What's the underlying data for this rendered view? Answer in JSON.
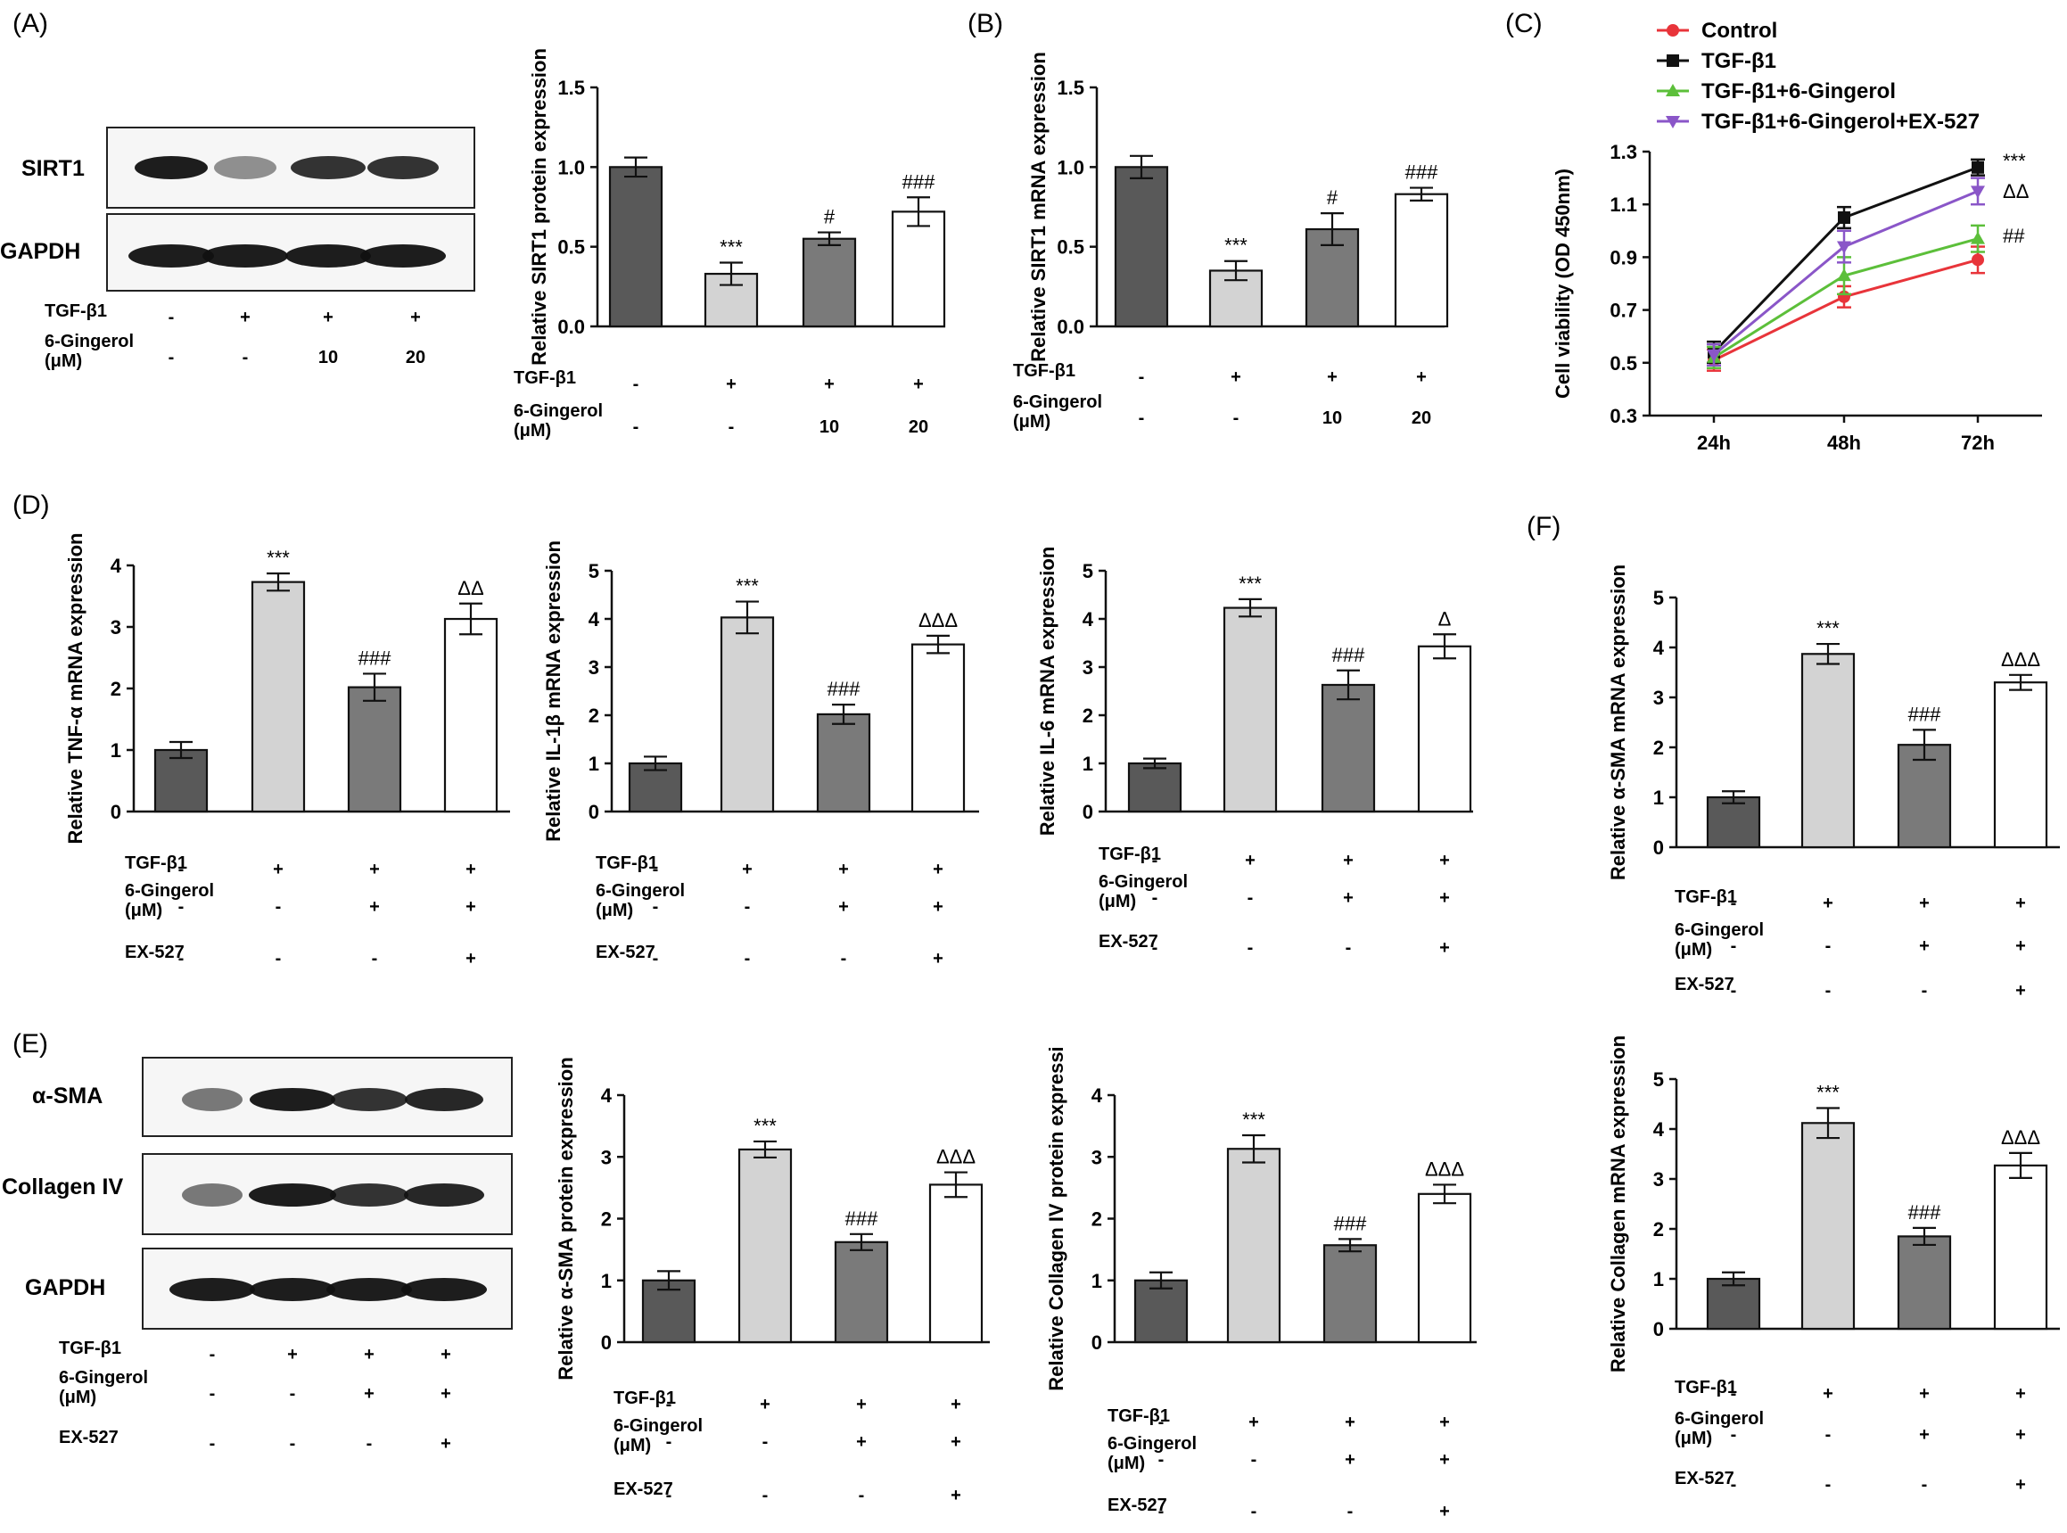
{
  "panels": {
    "A": {
      "label": "(A)"
    },
    "B": {
      "label": "(B)"
    },
    "C": {
      "label": "(C)"
    },
    "D": {
      "label": "(D)"
    },
    "E": {
      "label": "(E)"
    },
    "F": {
      "label": "(F)"
    }
  },
  "blots": {
    "A": {
      "bands": [
        "SIRT1",
        "GAPDH"
      ],
      "treatments": [
        {
          "name": "TGF-β1",
          "values": [
            "-",
            "+",
            "+",
            "+"
          ]
        },
        {
          "name": "6-Gingerol\n(μM)",
          "values": [
            "-",
            "-",
            "10",
            "20"
          ]
        }
      ]
    },
    "E": {
      "bands": [
        "α-SMA",
        "Collagen IV",
        "GAPDH"
      ],
      "treatments": [
        {
          "name": "TGF-β1",
          "values": [
            "-",
            "+",
            "+",
            "+"
          ]
        },
        {
          "name": "6-Gingerol\n(μM)",
          "values": [
            "-",
            "-",
            "+",
            "+"
          ]
        },
        {
          "name": "EX-527",
          "values": [
            "-",
            "-",
            "-",
            "+"
          ]
        }
      ]
    }
  },
  "colors": {
    "bar_fills": [
      "#595959",
      "#d3d3d3",
      "#7a7a7a",
      "#ffffff"
    ],
    "control": "#e8343a",
    "tgf": "#111111",
    "gingerol": "#5cbf3a",
    "ex527": "#8a56c8"
  },
  "chart_data": [
    {
      "id": "A-bar",
      "type": "bar",
      "ylabel": "Relative SIRT1 protein expression",
      "ylim": [
        0,
        1.5
      ],
      "yticks": [
        "0.0",
        "0.5",
        "1.0",
        "1.5"
      ],
      "values": [
        1.0,
        0.33,
        0.55,
        0.72
      ],
      "errors": [
        0.06,
        0.07,
        0.04,
        0.09
      ],
      "sig": [
        "",
        "***",
        "#",
        "###"
      ],
      "treatments": [
        {
          "name": "TGF-β1",
          "values": [
            "-",
            "+",
            "+",
            "+"
          ]
        },
        {
          "name": "6-Gingerol\n(μM)",
          "values": [
            "-",
            "-",
            "10",
            "20"
          ]
        }
      ]
    },
    {
      "id": "B-bar",
      "type": "bar",
      "ylabel": "Relative SIRT1 mRNA expression",
      "ylim": [
        0,
        1.5
      ],
      "yticks": [
        "0.0",
        "0.5",
        "1.0",
        "1.5"
      ],
      "values": [
        1.0,
        0.35,
        0.61,
        0.83
      ],
      "errors": [
        0.07,
        0.06,
        0.1,
        0.04
      ],
      "sig": [
        "",
        "***",
        "#",
        "###"
      ],
      "treatments": [
        {
          "name": "TGF-β1",
          "values": [
            "-",
            "+",
            "+",
            "+"
          ]
        },
        {
          "name": "6-Gingerol\n(μM)",
          "values": [
            "-",
            "-",
            "10",
            "20"
          ]
        }
      ]
    },
    {
      "id": "C-line",
      "type": "line",
      "ylabel": "Cell viability (OD 450nm)",
      "ylim": [
        0.3,
        1.3
      ],
      "yticks": [
        "0.3",
        "0.5",
        "0.7",
        "0.9",
        "1.1",
        "1.3"
      ],
      "categories": [
        "24h",
        "48h",
        "72h"
      ],
      "series": [
        {
          "name": "Control",
          "values": [
            0.51,
            0.75,
            0.89
          ],
          "errors": [
            0.04,
            0.04,
            0.05
          ]
        },
        {
          "name": "TGF-β1",
          "values": [
            0.54,
            1.05,
            1.24
          ],
          "errors": [
            0.04,
            0.04,
            0.03
          ]
        },
        {
          "name": "TGF-β1+6-Gingerol",
          "values": [
            0.52,
            0.83,
            0.97
          ],
          "errors": [
            0.04,
            0.07,
            0.05
          ]
        },
        {
          "name": "TGF-β1+6-Gingerol+EX-527",
          "values": [
            0.53,
            0.94,
            1.15
          ],
          "errors": [
            0.04,
            0.06,
            0.05
          ]
        }
      ],
      "annotations": [
        "***",
        "ΔΔ",
        "##"
      ]
    },
    {
      "id": "D1",
      "type": "bar",
      "ylabel": "Relative TNF-α mRNA expression",
      "ylim": [
        0,
        4
      ],
      "yticks": [
        "0",
        "1",
        "2",
        "3",
        "4"
      ],
      "values": [
        1.0,
        3.73,
        2.02,
        3.13
      ],
      "errors": [
        0.13,
        0.14,
        0.22,
        0.25
      ],
      "sig": [
        "",
        "***",
        "###",
        "ΔΔ"
      ],
      "treatments": [
        {
          "name": "TGF-β1",
          "values": [
            "-",
            "+",
            "+",
            "+"
          ]
        },
        {
          "name": "6-Gingerol\n(μM)",
          "values": [
            "-",
            "-",
            "+",
            "+"
          ]
        },
        {
          "name": "EX-527",
          "values": [
            "-",
            "-",
            "-",
            "+"
          ]
        }
      ]
    },
    {
      "id": "D2",
      "type": "bar",
      "ylabel": "Relative IL-1β mRNA expression",
      "ylim": [
        0,
        5
      ],
      "yticks": [
        "0",
        "1",
        "2",
        "3",
        "4",
        "5"
      ],
      "values": [
        1.0,
        4.03,
        2.02,
        3.47
      ],
      "errors": [
        0.14,
        0.33,
        0.2,
        0.18
      ],
      "sig": [
        "",
        "***",
        "###",
        "ΔΔΔ"
      ],
      "treatments": [
        {
          "name": "TGF-β1",
          "values": [
            "-",
            "+",
            "+",
            "+"
          ]
        },
        {
          "name": "6-Gingerol\n(μM)",
          "values": [
            "-",
            "-",
            "+",
            "+"
          ]
        },
        {
          "name": "EX-527",
          "values": [
            "-",
            "-",
            "-",
            "+"
          ]
        }
      ]
    },
    {
      "id": "D3",
      "type": "bar",
      "ylabel": "Relative IL-6 mRNA expression",
      "ylim": [
        0,
        5
      ],
      "yticks": [
        "0",
        "1",
        "2",
        "3",
        "4",
        "5"
      ],
      "values": [
        1.0,
        4.23,
        2.63,
        3.43
      ],
      "errors": [
        0.1,
        0.18,
        0.3,
        0.25
      ],
      "sig": [
        "",
        "***",
        "###",
        "Δ"
      ],
      "treatments": [
        {
          "name": "TGF-β1",
          "values": [
            "-",
            "+",
            "+",
            "+"
          ]
        },
        {
          "name": "6-Gingerol\n(μM)",
          "values": [
            "-",
            "-",
            "+",
            "+"
          ]
        },
        {
          "name": "EX-527",
          "values": [
            "-",
            "-",
            "-",
            "+"
          ]
        }
      ]
    },
    {
      "id": "F1",
      "type": "bar",
      "ylabel": "Relative α-SMA mRNA expression",
      "ylim": [
        0,
        5
      ],
      "yticks": [
        "0",
        "1",
        "2",
        "3",
        "4",
        "5"
      ],
      "values": [
        1.0,
        3.87,
        2.05,
        3.3
      ],
      "errors": [
        0.12,
        0.2,
        0.3,
        0.15
      ],
      "sig": [
        "",
        "***",
        "###",
        "ΔΔΔ"
      ],
      "treatments": [
        {
          "name": "TGF-β1",
          "values": [
            "-",
            "+",
            "+",
            "+"
          ]
        },
        {
          "name": "6-Gingerol\n(μM)",
          "values": [
            "-",
            "-",
            "+",
            "+"
          ]
        },
        {
          "name": "EX-527",
          "values": [
            "-",
            "-",
            "-",
            "+"
          ]
        }
      ]
    },
    {
      "id": "E1",
      "type": "bar",
      "ylabel": "Relative α-SMA protein expression",
      "ylim": [
        0,
        4
      ],
      "yticks": [
        "0",
        "1",
        "2",
        "3",
        "4"
      ],
      "values": [
        1.0,
        3.12,
        1.62,
        2.55
      ],
      "errors": [
        0.15,
        0.13,
        0.13,
        0.2
      ],
      "sig": [
        "",
        "***",
        "###",
        "ΔΔΔ"
      ],
      "treatments": [
        {
          "name": "TGF-β1",
          "values": [
            "-",
            "+",
            "+",
            "+"
          ]
        },
        {
          "name": "6-Gingerol\n(μM)",
          "values": [
            "-",
            "-",
            "+",
            "+"
          ]
        },
        {
          "name": "EX-527",
          "values": [
            "-",
            "-",
            "-",
            "+"
          ]
        }
      ]
    },
    {
      "id": "E2",
      "type": "bar",
      "ylabel": "Relative Collagen IV protein expressi",
      "ylim": [
        0,
        4
      ],
      "yticks": [
        "0",
        "1",
        "2",
        "3",
        "4"
      ],
      "values": [
        1.0,
        3.13,
        1.57,
        2.4
      ],
      "errors": [
        0.13,
        0.22,
        0.1,
        0.15
      ],
      "sig": [
        "",
        "***",
        "###",
        "ΔΔΔ"
      ],
      "treatments": [
        {
          "name": "TGF-β1",
          "values": [
            "-",
            "+",
            "+",
            "+"
          ]
        },
        {
          "name": "6-Gingerol\n(μM)",
          "values": [
            "-",
            "-",
            "+",
            "+"
          ]
        },
        {
          "name": "EX-527",
          "values": [
            "-",
            "-",
            "-",
            "+"
          ]
        }
      ]
    },
    {
      "id": "F2",
      "type": "bar",
      "ylabel": "Relative Collagen mRNA expression",
      "ylim": [
        0,
        5
      ],
      "yticks": [
        "0",
        "1",
        "2",
        "3",
        "4",
        "5"
      ],
      "values": [
        1.0,
        4.12,
        1.85,
        3.27
      ],
      "errors": [
        0.13,
        0.3,
        0.17,
        0.25
      ],
      "sig": [
        "",
        "***",
        "###",
        "ΔΔΔ"
      ],
      "treatments": [
        {
          "name": "TGF-β1",
          "values": [
            "-",
            "+",
            "+",
            "+"
          ]
        },
        {
          "name": "6-Gingerol\n(μM)",
          "values": [
            "-",
            "-",
            "+",
            "+"
          ]
        },
        {
          "name": "EX-527",
          "values": [
            "-",
            "-",
            "-",
            "+"
          ]
        }
      ]
    }
  ]
}
